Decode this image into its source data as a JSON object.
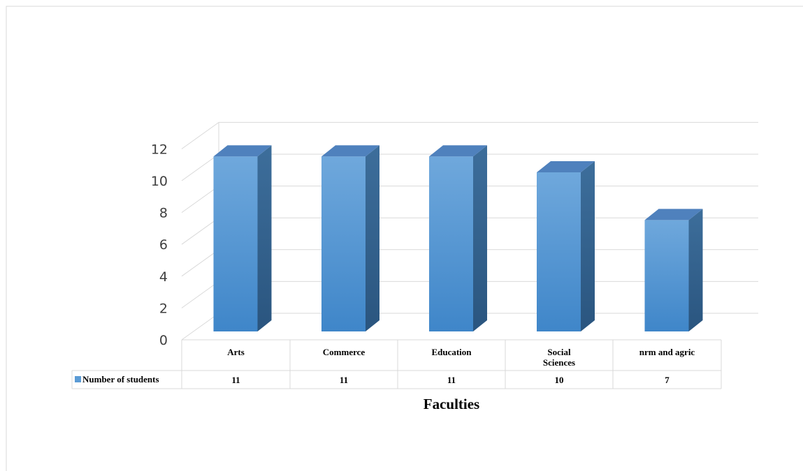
{
  "chart_data": {
    "type": "bar",
    "categories": [
      "Arts",
      "Commerce",
      "Education",
      "Social Sciences",
      "nrm and agric"
    ],
    "series": [
      {
        "name": "Number of students",
        "values": [
          11,
          11,
          11,
          10,
          7
        ]
      }
    ],
    "xlabel": "Faculties",
    "ylabel": "",
    "ylim": [
      0,
      12
    ],
    "yticks": [
      0,
      2,
      4,
      6,
      8,
      10,
      12
    ],
    "grid": true,
    "style": "3d-column with data table",
    "colors": {
      "bar_front": "#5b9bd5",
      "bar_side": "#2e5f8c",
      "bar_top": "#4f81bd",
      "legend_key": "#5b9bd5"
    }
  }
}
